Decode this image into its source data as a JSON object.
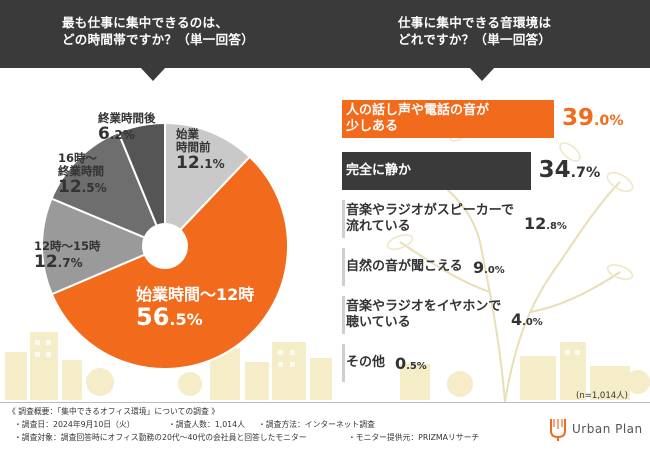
{
  "header": {
    "q1_line1": "最も仕事に集中できるのは、",
    "q1_line2": "どの時間帯ですか？（単一回答）",
    "q2_line1": "仕事に集中できる音環境は",
    "q2_line2": "どれですか？（単一回答）"
  },
  "colors": {
    "orange": "#f26b1d",
    "dark": "#3a3a3a",
    "gray_mid": "#9a9a9a",
    "gray_light": "#c9c9c9",
    "gray_dark": "#6e6e6e",
    "city": "#f5ecc8"
  },
  "chart_data": [
    {
      "type": "pie",
      "title": "最も仕事に集中できるのは、どの時間帯ですか？（単一回答）",
      "start": "12 o'clock, clockwise",
      "slices": [
        {
          "label": "始業時間前",
          "line1": "始業",
          "line2": "時間前",
          "value": 12.1,
          "int": "12",
          "dec": ".1%",
          "color": "#c9c9c9"
        },
        {
          "label": "始業時間〜12時",
          "line1": "始業時間〜12時",
          "line2": "",
          "value": 56.5,
          "int": "56",
          "dec": ".5%",
          "color": "#f26b1d"
        },
        {
          "label": "12時〜15時",
          "line1": "12時〜15時",
          "line2": "",
          "value": 12.7,
          "int": "12",
          "dec": ".7%",
          "color": "#9a9a9a"
        },
        {
          "label": "16時〜終業時間",
          "line1": "16時〜",
          "line2": "終業時間",
          "value": 12.5,
          "int": "12",
          "dec": ".5%",
          "color": "#6e6e6e"
        },
        {
          "label": "終業時間後",
          "line1": "終業時間後",
          "line2": "",
          "value": 6.2,
          "int": "6",
          "dec": ".2%",
          "color": "#555555"
        }
      ]
    },
    {
      "type": "bar",
      "orientation": "horizontal",
      "title": "仕事に集中できる音環境はどれですか？（単一回答）",
      "xlim": [
        0,
        39
      ],
      "bars": [
        {
          "line1": "人の話し声や電話の音が",
          "line2": "少しある",
          "value": 39.0,
          "int": "39",
          "dec": ".0%",
          "style": "orange"
        },
        {
          "line1": "完全に静か",
          "line2": "",
          "value": 34.7,
          "int": "34",
          "dec": ".7%",
          "style": "dark"
        },
        {
          "line1": "音楽やラジオがスピーカーで",
          "line2": "流れている",
          "value": 12.8,
          "int": "12",
          "dec": ".8%",
          "style": "light"
        },
        {
          "line1": "自然の音が聞こえる",
          "line2": "",
          "value": 9.0,
          "int": "9",
          "dec": ".0%",
          "style": "light"
        },
        {
          "line1": "音楽やラジオをイヤホンで",
          "line2": "聴いている",
          "value": 4.0,
          "int": "4",
          "dec": ".0%",
          "style": "light"
        },
        {
          "line1": "その他",
          "line2": "",
          "value": 0.5,
          "int": "0",
          "dec": ".5%",
          "style": "light"
        }
      ],
      "n_note": "(n=1,014人)"
    }
  ],
  "footer": {
    "title": "《 調査概要：「集中できるオフィス環境」についての調査 》",
    "date": "・調査日：2024年9月10日（火）",
    "count": "・調査人数：1,014人",
    "method": "・調査方法：インターネット調査",
    "target": "・調査対象：調査回答時にオフィス勤務の20代〜40代の会社員と回答したモニター",
    "provider": "・モニター提供元：PRIZMAリサーチ",
    "brand": "Urban Plan"
  }
}
